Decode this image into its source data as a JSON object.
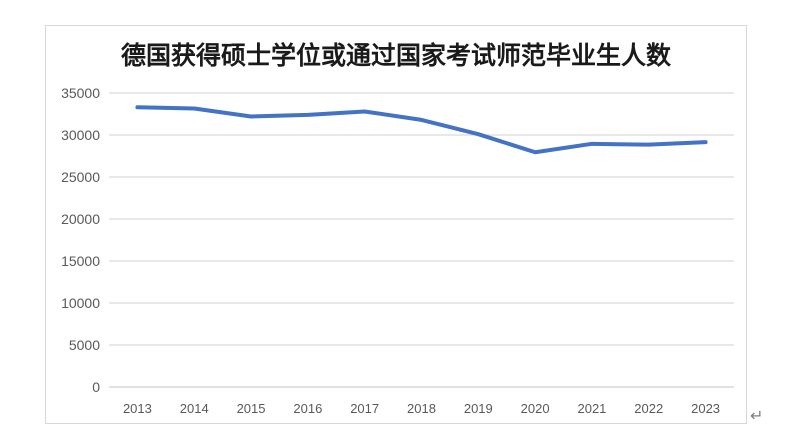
{
  "document": {
    "paragraph_mark": "↵"
  },
  "chart": {
    "title": "德国获得硕士学位或通过国家考试师范毕业生人数"
  },
  "chart_data": {
    "type": "line",
    "title": "德国获得硕士学位或通过国家考试师范毕业生人数",
    "categories": [
      "2013",
      "2014",
      "2015",
      "2016",
      "2017",
      "2018",
      "2019",
      "2020",
      "2021",
      "2022",
      "2023"
    ],
    "values": [
      33300,
      33150,
      32200,
      32400,
      32800,
      31800,
      30100,
      27950,
      28950,
      28850,
      29150
    ],
    "xlabel": "",
    "ylabel": "",
    "ylim": [
      0,
      35000
    ],
    "ytick_step": 5000,
    "yticks": [
      0,
      5000,
      10000,
      15000,
      20000,
      25000,
      30000,
      35000
    ],
    "grid": true,
    "legend": "none",
    "line_color": "#4472C4",
    "gridline_color": "#D9D9D9",
    "axis_line_color": "#CFCFCF",
    "axis_text_color": "#595959",
    "title_color": "#1A1A1A"
  }
}
